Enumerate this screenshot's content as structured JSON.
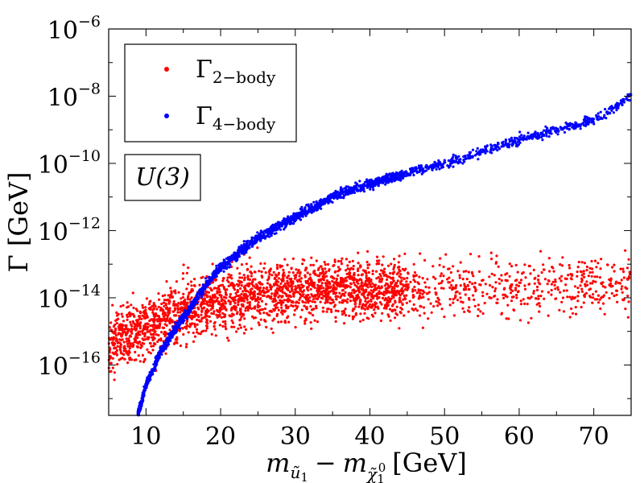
{
  "chart_data": {
    "type": "scatter",
    "title": "",
    "xlabel_parts": {
      "m1": "m",
      "m1_sub": "ũ",
      "m1_subsub": "1",
      "minus": "−",
      "m2": "m",
      "m2_sub": "χ̃",
      "m2_subsub": "1",
      "m2_sup": "0",
      "unit": "[GeV]"
    },
    "ylabel": "Γ [GeV]",
    "xlim": [
      5,
      75
    ],
    "ylim_log10": [
      -17.5,
      -6
    ],
    "x_ticks": [
      10,
      20,
      30,
      40,
      50,
      60,
      70
    ],
    "x_tick_labels": [
      "10",
      "20",
      "30",
      "40",
      "50",
      "60",
      "70"
    ],
    "y_ticks_log10": [
      -16,
      -14,
      -12,
      -10,
      -8,
      -6
    ],
    "y_tick_base": "10",
    "y_tick_exponents": [
      "−16",
      "−14",
      "−12",
      "−10",
      "−8",
      "−6"
    ],
    "annotation": {
      "text": "U(3)"
    },
    "series": [
      {
        "name": "Γ2−body",
        "label_main": "Γ",
        "label_sub": "2−body",
        "color": "#ff0000",
        "shape": "scatter-cloud",
        "log10_center_at_x": [
          [
            5,
            -15.3
          ],
          [
            10,
            -14.9
          ],
          [
            15,
            -14.4
          ],
          [
            20,
            -14.1
          ],
          [
            25,
            -13.9
          ],
          [
            30,
            -13.75
          ],
          [
            35,
            -13.7
          ],
          [
            40,
            -13.75
          ],
          [
            50,
            -13.75
          ],
          [
            60,
            -13.7
          ],
          [
            75,
            -13.5
          ]
        ],
        "spread_log10": 0.75,
        "n_points_visible": "thousands"
      },
      {
        "name": "Γ4−body",
        "label_main": "Γ",
        "label_sub": "4−body",
        "color": "#0000ff",
        "shape": "narrow-band",
        "log10_band_at_x": [
          [
            8.9,
            -17.5
          ],
          [
            10,
            -16.6
          ],
          [
            12,
            -15.6
          ],
          [
            14,
            -14.9
          ],
          [
            16,
            -14.3
          ],
          [
            18,
            -13.6
          ],
          [
            20,
            -13.1
          ],
          [
            25,
            -12.2
          ],
          [
            30,
            -11.6
          ],
          [
            35,
            -11.0
          ],
          [
            40,
            -10.6
          ],
          [
            50,
            -10.0
          ],
          [
            60,
            -9.3
          ],
          [
            70,
            -8.7
          ],
          [
            75,
            -8.0
          ]
        ],
        "spread_log10": 0.12,
        "n_points_visible": "thousands"
      }
    ],
    "legend_position": "upper-left",
    "grid": false
  }
}
